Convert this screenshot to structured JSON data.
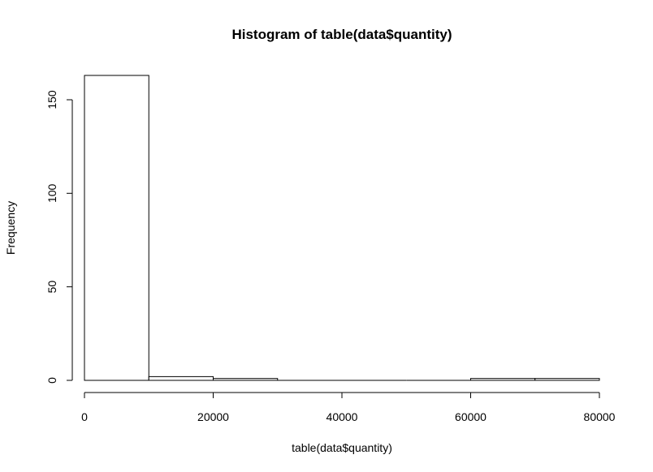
{
  "chart_data": {
    "type": "bar",
    "title": "Histogram of table(data$quantity)",
    "xlabel": "table(data$quantity)",
    "ylabel": "Frequency",
    "bins": [
      {
        "from": 0,
        "to": 10000,
        "count": 163
      },
      {
        "from": 10000,
        "to": 20000,
        "count": 2
      },
      {
        "from": 20000,
        "to": 30000,
        "count": 1
      },
      {
        "from": 30000,
        "to": 40000,
        "count": 0
      },
      {
        "from": 40000,
        "to": 50000,
        "count": 0
      },
      {
        "from": 50000,
        "to": 60000,
        "count": 0
      },
      {
        "from": 60000,
        "to": 70000,
        "count": 1
      },
      {
        "from": 70000,
        "to": 80000,
        "count": 1
      }
    ],
    "xlim": [
      0,
      80000
    ],
    "ylim": [
      0,
      163
    ],
    "x_ticks": [
      0,
      20000,
      40000,
      60000,
      80000
    ],
    "x_tick_labels": [
      "0",
      "20000",
      "40000",
      "60000",
      "80000"
    ],
    "y_ticks": [
      0,
      50,
      100,
      150
    ],
    "y_tick_labels": [
      "0",
      "50",
      "100",
      "150"
    ],
    "bar_fill": "#ffffff",
    "bar_stroke": "#000000",
    "grid": false
  }
}
